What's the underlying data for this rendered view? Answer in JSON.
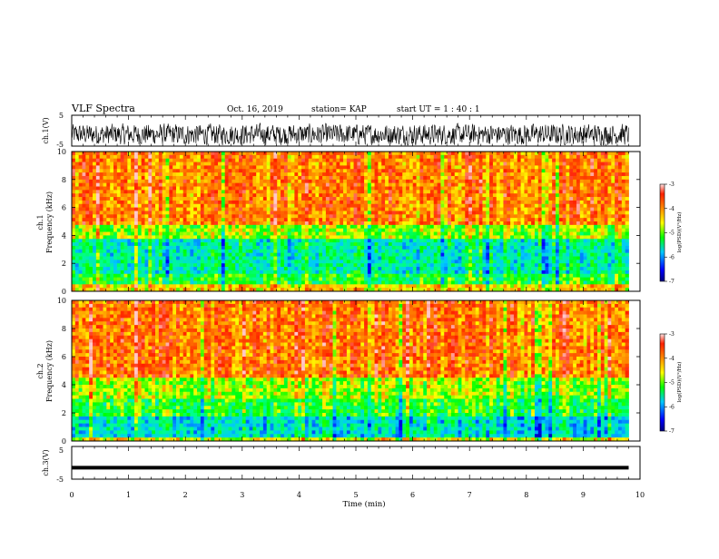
{
  "header": {
    "title": "VLF Spectra",
    "date": "Oct. 16, 2019",
    "station": "station= KAP",
    "start": "start  UT =   1 : 40 : 1"
  },
  "colors": {
    "spectrum": [
      "#00007f",
      "#0000ff",
      "#00c8ff",
      "#00ff9a",
      "#00ff00",
      "#ffff00",
      "#ff8c00",
      "#ff2000",
      "#ffc0c0"
    ],
    "background": "#ffffff",
    "axis": "#000000"
  },
  "chart_data": [
    {
      "type": "line",
      "panel": "ch1-waveform",
      "ylabel": "ch.1(V)",
      "ylim": [
        -5,
        5
      ],
      "yticks": [
        "5",
        "-5"
      ],
      "xlim": [
        0,
        10
      ],
      "series_style": "dense noisy waveform around 0 V, amplitude approx 3-4 V",
      "amplitude": 3.5
    },
    {
      "type": "heatmap",
      "panel": "ch1-spectrogram",
      "ylabel": "ch.1\nFrequency (kHz)",
      "ylabel_lines": [
        "ch.1",
        "Frequency (kHz)"
      ],
      "ylim": [
        0,
        10
      ],
      "yticks": [
        "0",
        "2",
        "4",
        "6",
        "8",
        "10"
      ],
      "xlim": [
        0,
        9.8
      ],
      "colorbar": {
        "label": "log(PSD)(V²/Hz)",
        "range": [
          -7,
          -3
        ],
        "ticks": [
          "-3",
          "-4",
          "-5",
          "-6",
          "-7"
        ]
      },
      "bands": [
        {
          "from": 0,
          "to": 0.6,
          "level": -4.2
        },
        {
          "from": 0.6,
          "to": 1.2,
          "level": -5.0
        },
        {
          "from": 1.2,
          "to": 3.8,
          "level": -5.4
        },
        {
          "from": 3.8,
          "to": 4.8,
          "level": -4.6
        },
        {
          "from": 4.8,
          "to": 10,
          "level": -3.8
        }
      ]
    },
    {
      "type": "heatmap",
      "panel": "ch2-spectrogram",
      "ylabel": "ch.2\nFrequency (kHz)",
      "ylabel_lines": [
        "ch.2",
        "Frequency (kHz)"
      ],
      "ylim": [
        0,
        10
      ],
      "yticks": [
        "0",
        "2",
        "4",
        "6",
        "8",
        "10"
      ],
      "xlim": [
        0,
        9.8
      ],
      "colorbar": {
        "label": "log(PSD)(V²/Hz)",
        "range": [
          -7,
          -3
        ],
        "ticks": [
          "-3",
          "-4",
          "-5",
          "-6",
          "-7"
        ]
      },
      "bands": [
        {
          "from": 0,
          "to": 0.3,
          "level": -4.4
        },
        {
          "from": 0.3,
          "to": 1.8,
          "level": -5.6
        },
        {
          "from": 1.8,
          "to": 3.0,
          "level": -5.0
        },
        {
          "from": 3.0,
          "to": 4.6,
          "level": -4.6
        },
        {
          "from": 4.6,
          "to": 10,
          "level": -3.8
        }
      ]
    },
    {
      "type": "line",
      "panel": "ch3-waveform",
      "ylabel": "ch.3(V)",
      "ylim": [
        -5,
        5
      ],
      "yticks": [
        "5",
        "-5"
      ],
      "xlim": [
        0,
        10
      ],
      "series_style": "flat thick line near constant",
      "value": -1.5
    }
  ],
  "x_axis": {
    "label": "Time (min)",
    "range": [
      0,
      10
    ],
    "ticks": [
      "0",
      "1",
      "2",
      "3",
      "4",
      "5",
      "6",
      "7",
      "8",
      "9",
      "10"
    ]
  }
}
